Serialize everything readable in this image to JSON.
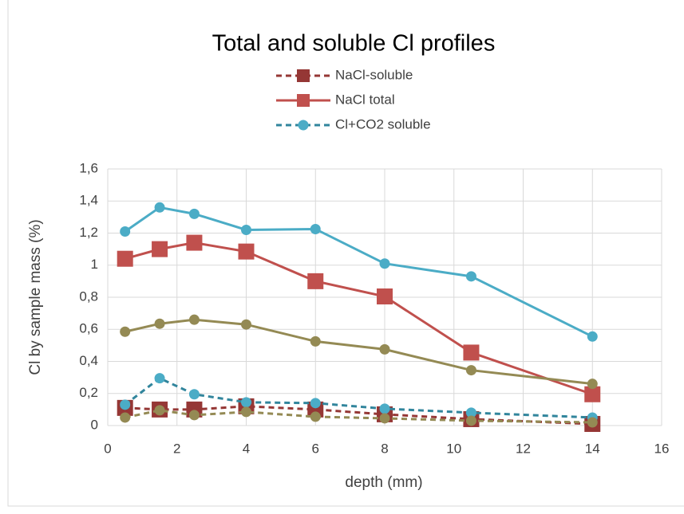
{
  "chart_data": {
    "type": "line",
    "title": "Total and soluble  Cl profiles",
    "x_label": "depth (mm)",
    "y_label": "Cl by  sample mass (%)",
    "x": [
      0.5,
      1.5,
      2.5,
      4,
      6,
      8,
      10.5,
      14
    ],
    "series": [
      {
        "name": "NaCl-soluble",
        "color": "#953735",
        "dash": true,
        "marker": "square",
        "values": [
          0.11,
          0.1,
          0.1,
          0.12,
          0.1,
          0.07,
          0.04,
          0.01
        ]
      },
      {
        "name": "NaCl total",
        "color": "#c0504d",
        "dash": false,
        "marker": "square",
        "values": [
          1.04,
          1.1,
          1.14,
          1.085,
          0.9,
          0.805,
          0.455,
          0.195
        ]
      },
      {
        "name": "Cl+CO2 soluble",
        "color": "#31859c",
        "marker_color": "#4bacc6",
        "dash": true,
        "marker": "circle",
        "values": [
          0.13,
          0.295,
          0.195,
          0.145,
          0.14,
          0.105,
          0.08,
          0.05
        ]
      },
      {
        "color": "#4bacc6",
        "dash": false,
        "marker": "circle",
        "values": [
          1.21,
          1.36,
          1.32,
          1.22,
          1.225,
          1.01,
          0.93,
          0.555
        ]
      },
      {
        "color": "#948a54",
        "dash": false,
        "marker": "circle",
        "values": [
          0.585,
          0.635,
          0.66,
          0.63,
          0.525,
          0.475,
          0.345,
          0.26
        ]
      },
      {
        "color": "#948a54",
        "dash": true,
        "marker": "circle",
        "values": [
          0.05,
          0.095,
          0.065,
          0.085,
          0.055,
          0.045,
          0.03,
          0.02
        ]
      }
    ],
    "xlim": [
      0,
      16
    ],
    "xticks": [
      0,
      2,
      4,
      6,
      8,
      10,
      12,
      14,
      16
    ],
    "ylim": [
      0,
      1.6
    ],
    "yticks": [
      0,
      {
        "value": 0.2,
        "label": "0,2"
      },
      {
        "value": 0.4,
        "label": "0,4"
      },
      {
        "value": 0.6,
        "label": "0,6"
      },
      {
        "value": 0.8,
        "label": "0,8"
      },
      1,
      {
        "value": 1.2,
        "label": "1,2"
      },
      {
        "value": 1.4,
        "label": "1,4"
      },
      {
        "value": 1.6,
        "label": "1,6"
      }
    ],
    "grid": true
  }
}
